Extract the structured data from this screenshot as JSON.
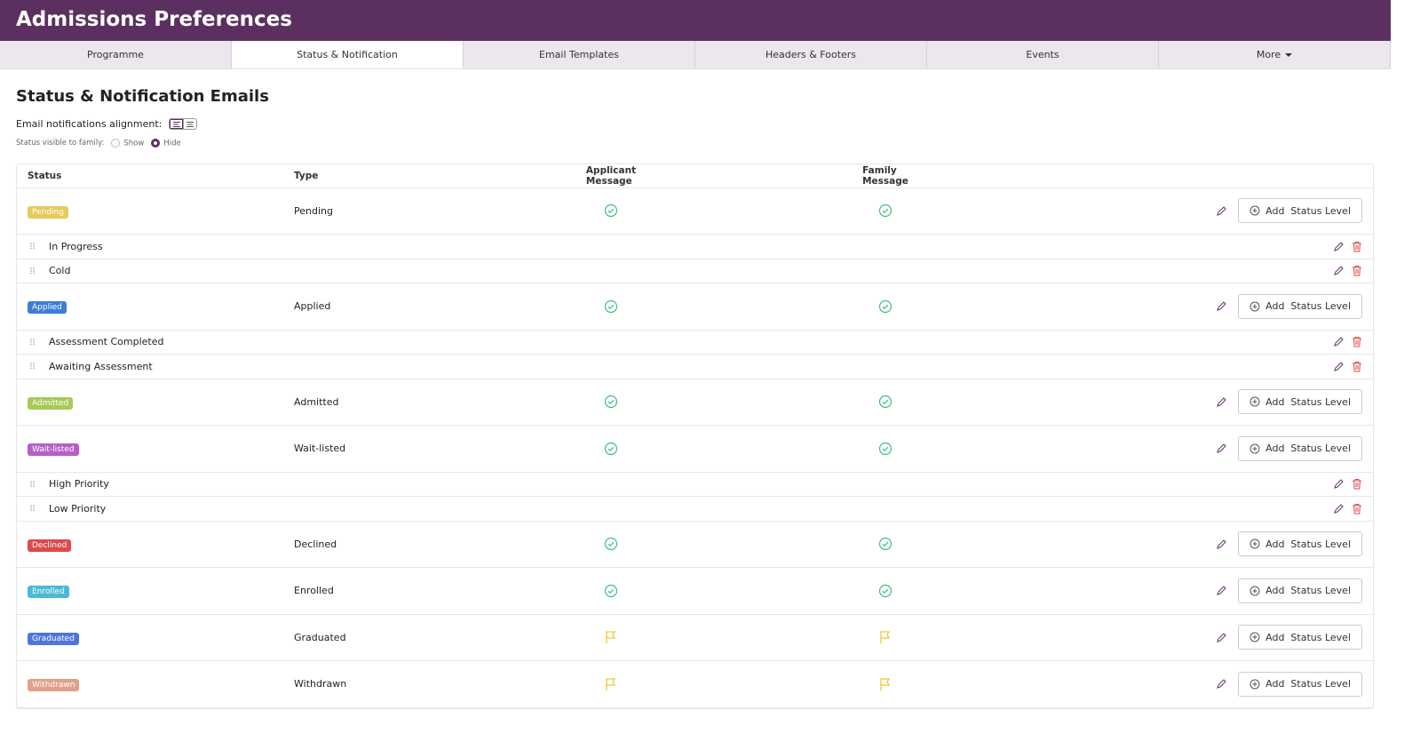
{
  "header": {
    "title": "Admissions Preferences"
  },
  "tabs": [
    {
      "label": "Programme",
      "active": false
    },
    {
      "label": "Status & Notification",
      "active": true
    },
    {
      "label": "Email Templates",
      "active": false
    },
    {
      "label": "Headers & Footers",
      "active": false
    },
    {
      "label": "Events",
      "active": false
    },
    {
      "label": "More",
      "active": false,
      "dropdown": true
    }
  ],
  "section": {
    "title": "Status & Notification Emails",
    "alignment_label": "Email notifications alignment:",
    "visibility_label": "Status visible to family:",
    "visibility_options": [
      {
        "label": "Show",
        "selected": false
      },
      {
        "label": "Hide",
        "selected": true
      }
    ]
  },
  "table": {
    "columns": [
      "Status",
      "Type",
      "Applicant Message",
      "Family Message"
    ],
    "add_button": "Add  Status Level",
    "rows": [
      {
        "status": "Pending",
        "type": "Pending",
        "color": "#e8c95a",
        "applicant": "check",
        "family": "check"
      },
      {
        "sub": "In Progress"
      },
      {
        "sub": "Cold"
      },
      {
        "status": "Applied",
        "type": "Applied",
        "color": "#3b7dd8",
        "applicant": "check",
        "family": "check"
      },
      {
        "sub": "Assessment Completed"
      },
      {
        "sub": "Awaiting Assessment"
      },
      {
        "status": "Admitted",
        "type": "Admitted",
        "color": "#a8c956",
        "applicant": "check",
        "family": "check"
      },
      {
        "status": "Wait-listed",
        "type": "Wait-listed",
        "color": "#b65fc9",
        "applicant": "check",
        "family": "check"
      },
      {
        "sub": "High Priority"
      },
      {
        "sub": "Low Priority"
      },
      {
        "status": "Declined",
        "type": "Declined",
        "color": "#dc4b4b",
        "applicant": "check",
        "family": "check"
      },
      {
        "status": "Enrolled",
        "type": "Enrolled",
        "color": "#4bbad4",
        "applicant": "check",
        "family": "check"
      },
      {
        "status": "Graduated",
        "type": "Graduated",
        "color": "#4f74dc",
        "applicant": "flag",
        "family": "flag"
      },
      {
        "status": "Withdrawn",
        "type": "Withdrawn",
        "color": "#e2a08a",
        "applicant": "flag",
        "family": "flag"
      }
    ]
  }
}
